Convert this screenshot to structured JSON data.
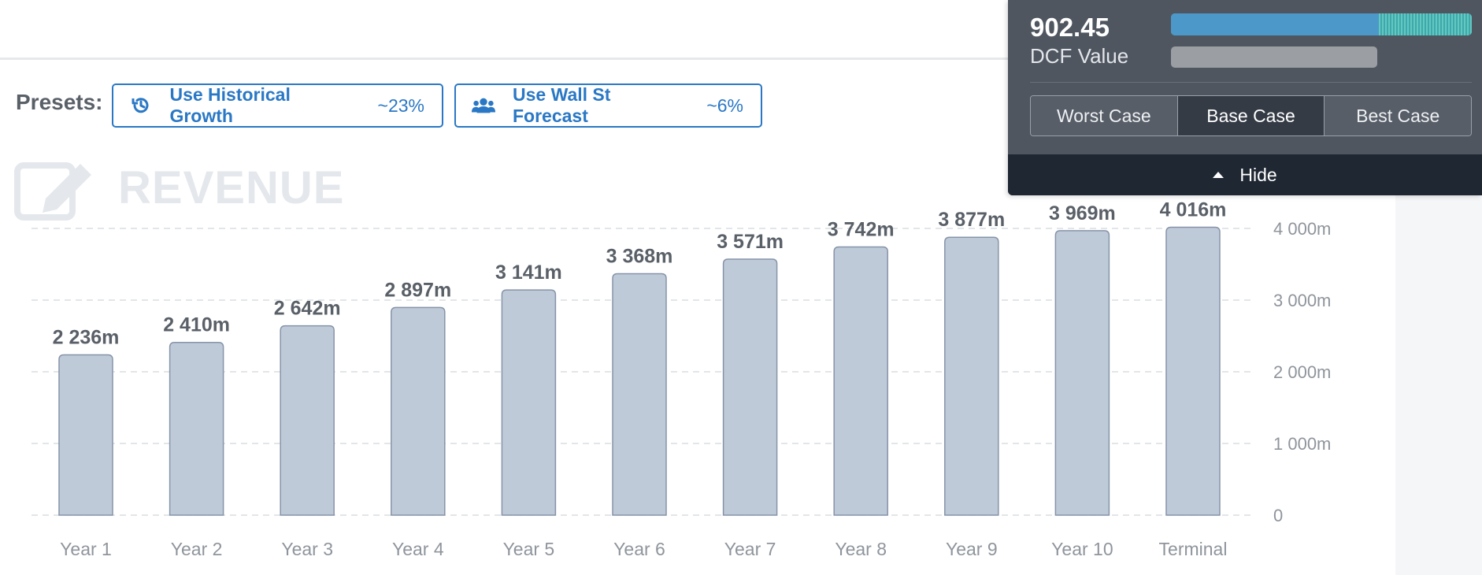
{
  "presets": {
    "label": "Presets:",
    "historical": {
      "label": "Use Historical Growth",
      "pct": "~23%"
    },
    "wall_st": {
      "label": "Use Wall St Forecast",
      "pct": "~6%"
    }
  },
  "section_title": "REVENUE",
  "dcf": {
    "value": "902.45",
    "label": "DCF Value",
    "value_bar_fraction": 0.69,
    "cases": [
      "Worst Case",
      "Base Case",
      "Best Case"
    ],
    "active_case": "Base Case",
    "hide_label": "Hide"
  },
  "colors": {
    "bar_fill": "#bfcad9",
    "bar_stroke": "#8694a8",
    "accent_blue": "#2a78c5",
    "panel_bg": "#4f5660"
  },
  "chart_data": {
    "type": "bar",
    "categories": [
      "Year 1",
      "Year 2",
      "Year 3",
      "Year 4",
      "Year 5",
      "Year 6",
      "Year 7",
      "Year 8",
      "Year 9",
      "Year 10",
      "Terminal"
    ],
    "values": [
      2236,
      2410,
      2642,
      2897,
      3141,
      3368,
      3571,
      3742,
      3877,
      3969,
      4016
    ],
    "value_labels": [
      "2 236m",
      "2 410m",
      "2 642m",
      "2 897m",
      "3 141m",
      "3 368m",
      "3 571m",
      "3 742m",
      "3 877m",
      "3 969m",
      "4 016m"
    ],
    "y_ticks": [
      0,
      1000,
      2000,
      3000,
      4000
    ],
    "y_tick_labels": [
      "0",
      "1 000m",
      "2 000m",
      "3 000m",
      "4 000m"
    ],
    "ylim": [
      0,
      5000
    ],
    "grid": true,
    "y_axis_position": "right"
  }
}
